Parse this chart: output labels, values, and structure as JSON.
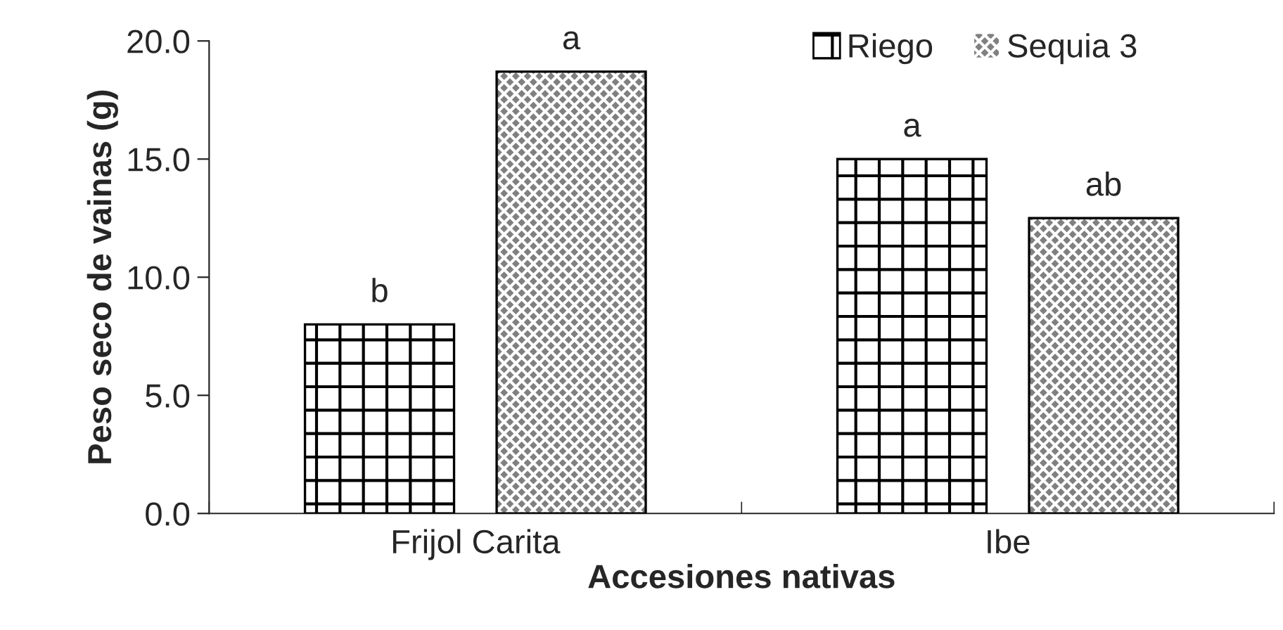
{
  "chart_data": {
    "type": "bar",
    "xlabel": "Accesiones nativas",
    "ylabel": "Peso seco de vainas (g)",
    "categories": [
      "Frijol Carita",
      "Ibe"
    ],
    "series": [
      {
        "name": "Riego",
        "color": "#ffffff",
        "values": [
          8.0,
          15.0
        ],
        "value_labels": [
          "b",
          "a"
        ]
      },
      {
        "name": "Sequia 3",
        "color": "#808080",
        "values": [
          18.7,
          12.5
        ],
        "value_labels": [
          "a",
          "ab"
        ]
      }
    ],
    "ylim": [
      0,
      20
    ],
    "yticks": [
      {
        "value": 0,
        "label": "0.0"
      },
      {
        "value": 5,
        "label": "5.0"
      },
      {
        "value": 10,
        "label": "10.0"
      },
      {
        "value": 15,
        "label": "15.0"
      },
      {
        "value": 20,
        "label": "20.0"
      }
    ],
    "grid": false,
    "legend": "top right"
  }
}
